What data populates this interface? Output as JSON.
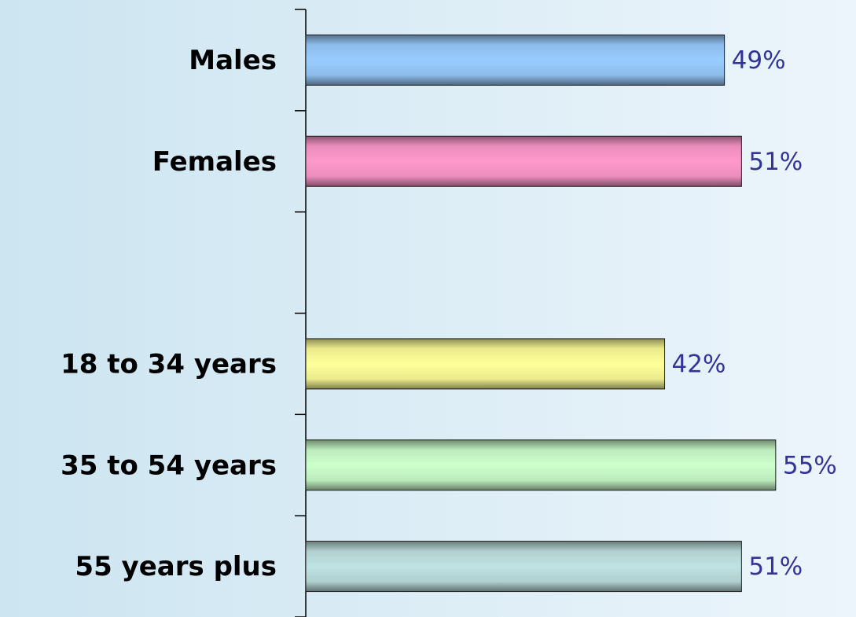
{
  "chart_data": {
    "type": "barh",
    "categories": [
      "Males",
      "Females",
      null,
      "18 to 34 years",
      "35 to 54 years",
      "55 years plus"
    ],
    "values": [
      49,
      51,
      null,
      42,
      55,
      51
    ],
    "value_labels": [
      "49%",
      "51%",
      null,
      "42%",
      "55%",
      "51%"
    ],
    "colors": [
      "#99ccff",
      "#ff99cc",
      null,
      "#ffff99",
      "#ccffcc",
      "#c0e2e2"
    ]
  }
}
